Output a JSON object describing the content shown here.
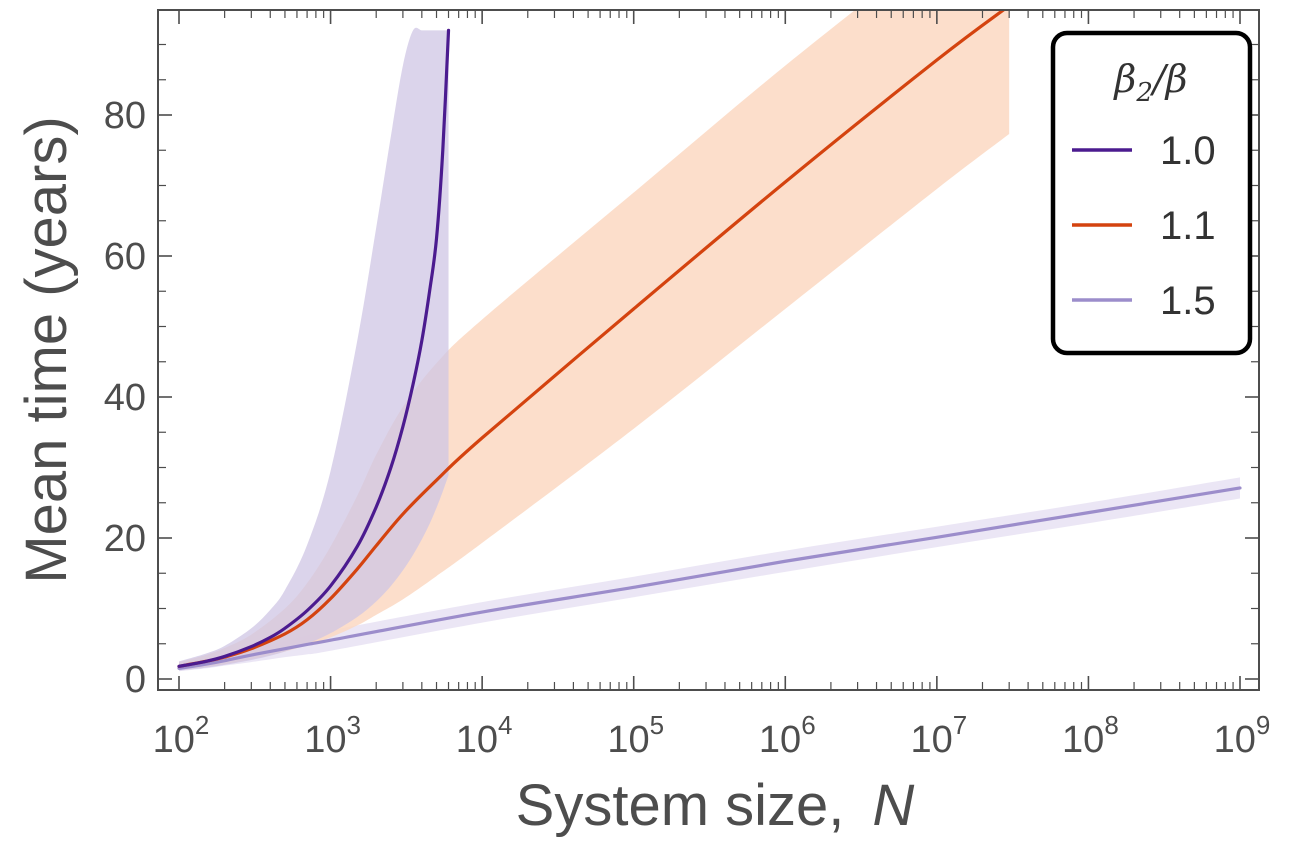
{
  "chart_data": {
    "type": "line",
    "xlabel": "System size,",
    "xlabel_var": "N",
    "ylabel": "Mean time (years)",
    "x_scale": "log10",
    "xlim": [
      100,
      1000000000
    ],
    "ylim": [
      0,
      92
    ],
    "x_ticks": [
      {
        "base": "10",
        "exp": "2",
        "value": 100
      },
      {
        "base": "10",
        "exp": "3",
        "value": 1000
      },
      {
        "base": "10",
        "exp": "4",
        "value": 10000
      },
      {
        "base": "10",
        "exp": "5",
        "value": 100000
      },
      {
        "base": "10",
        "exp": "6",
        "value": 1000000
      },
      {
        "base": "10",
        "exp": "7",
        "value": 10000000
      },
      {
        "base": "10",
        "exp": "8",
        "value": 100000000
      },
      {
        "base": "10",
        "exp": "9",
        "value": 1000000000
      }
    ],
    "y_ticks": [
      {
        "label": "0",
        "value": 0
      },
      {
        "label": "20",
        "value": 20
      },
      {
        "label": "40",
        "value": 40
      },
      {
        "label": "60",
        "value": 60
      },
      {
        "label": "80",
        "value": 80
      }
    ],
    "grid": false,
    "legend": {
      "title_main": "β",
      "title_sub": "2",
      "title_rest": "/β",
      "position": "top-right"
    },
    "series": [
      {
        "name": "1.0",
        "color": "#4b1b8f",
        "band_color": "#cfc6e4",
        "x": [
          100,
          150,
          200,
          300,
          400,
          500,
          700,
          1000,
          1500,
          2000,
          2500,
          3000,
          3500,
          4000,
          4500,
          5000,
          5500,
          6000
        ],
        "y": [
          1.8,
          2.5,
          3.2,
          4.6,
          5.9,
          7.2,
          9.7,
          13.2,
          18.8,
          24.4,
          30.0,
          35.8,
          41.8,
          48.0,
          55.0,
          62.5,
          75.0,
          92.0
        ],
        "y_lower": [
          1.2,
          1.6,
          2.0,
          2.7,
          3.3,
          3.9,
          5.0,
          6.5,
          8.8,
          11.0,
          13.2,
          15.4,
          17.6,
          19.8,
          22.0,
          24.3,
          26.6,
          28.9
        ],
        "y_upper": [
          2.5,
          3.6,
          4.7,
          7.2,
          9.8,
          12.6,
          19.0,
          29.5,
          48.0,
          64.0,
          77.0,
          87.0,
          92.0,
          92.0,
          92.0,
          92.0,
          92.0,
          92.0
        ]
      },
      {
        "name": "1.1",
        "color": "#d4430f",
        "band_color": "#fbd8c2",
        "x": [
          100,
          150,
          200,
          300,
          500,
          700,
          1000,
          1500,
          2000,
          3000,
          5000,
          10000,
          100000,
          1000000,
          10000000,
          30000000
        ],
        "y": [
          1.8,
          2.5,
          3.1,
          4.3,
          6.4,
          8.4,
          11.4,
          15.6,
          18.9,
          23.4,
          28.2,
          34.2,
          52.5,
          70.5,
          87.8,
          95.5
        ],
        "y_lower": [
          1.3,
          1.7,
          2.1,
          2.8,
          3.9,
          4.8,
          5.9,
          7.6,
          9.1,
          11.3,
          14.6,
          19.3,
          35.5,
          52.5,
          69.5,
          77.3
        ],
        "y_upper": [
          2.4,
          3.4,
          4.4,
          6.3,
          10.0,
          13.6,
          18.8,
          26.0,
          31.8,
          38.6,
          44.8,
          51.0,
          69.0,
          87.0,
          104.0,
          112.0
        ]
      },
      {
        "name": "1.5",
        "color": "#9c8dcb",
        "band_color": "#e4def2",
        "x": [
          100,
          150,
          200,
          300,
          500,
          700,
          1000,
          10000,
          100000,
          1000000,
          10000000,
          100000000,
          1000000000
        ],
        "y": [
          1.5,
          2.1,
          2.6,
          3.4,
          4.3,
          4.9,
          5.5,
          9.5,
          13.0,
          16.7,
          20.1,
          23.6,
          27.1
        ],
        "y_lower": [
          1.1,
          1.5,
          1.9,
          2.4,
          3.1,
          3.5,
          4.0,
          8.0,
          11.6,
          15.2,
          18.7,
          22.1,
          25.6
        ],
        "y_upper": [
          1.9,
          2.7,
          3.4,
          4.3,
          5.4,
          6.2,
          6.9,
          10.9,
          14.5,
          18.2,
          21.6,
          25.0,
          28.6
        ]
      }
    ]
  }
}
